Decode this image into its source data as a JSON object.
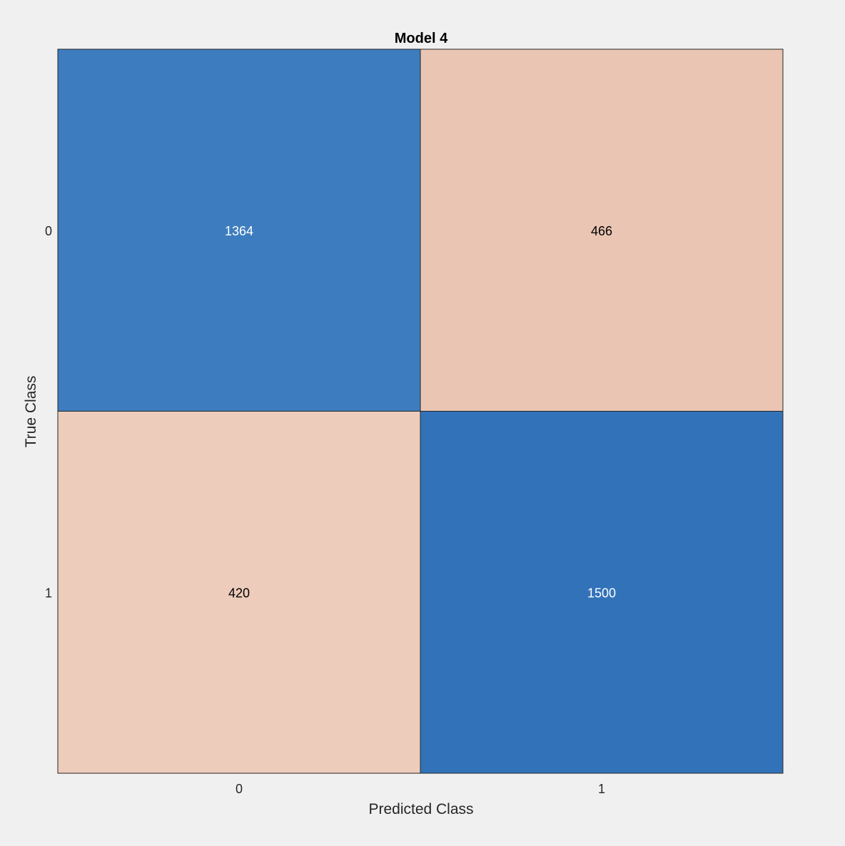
{
  "chart_data": {
    "type": "heatmap",
    "title": "Model 4",
    "xlabel": "Predicted Class",
    "ylabel": "True Class",
    "x_categories": [
      "0",
      "1"
    ],
    "y_categories": [
      "0",
      "1"
    ],
    "values": [
      [
        1364,
        466
      ],
      [
        420,
        1500
      ]
    ],
    "cell_colors": [
      [
        "#3d7dbf",
        "#eac5b3"
      ],
      [
        "#edccbb",
        "#3272b9"
      ]
    ],
    "cell_text_colors": [
      [
        "#ffffff",
        "#000000"
      ],
      [
        "#000000",
        "#ffffff"
      ]
    ],
    "grid": false,
    "legend": "none"
  }
}
